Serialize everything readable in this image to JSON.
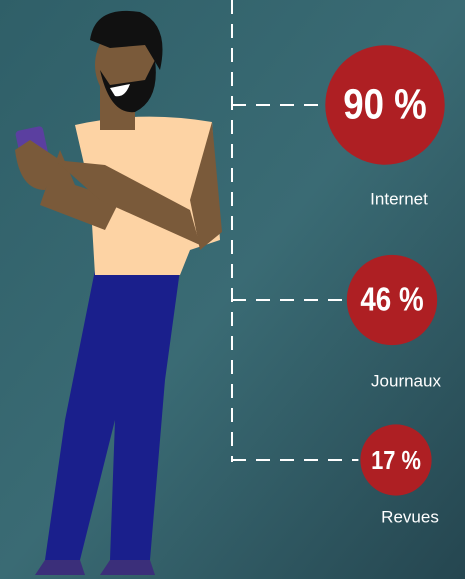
{
  "chart_data": {
    "type": "bubble",
    "categories": [
      "Internet",
      "Journaux",
      "Revues"
    ],
    "values": [
      90,
      46,
      17
    ],
    "value_labels": [
      "90 %",
      "46 %",
      "17 %"
    ],
    "color": "#ae1f23"
  }
}
